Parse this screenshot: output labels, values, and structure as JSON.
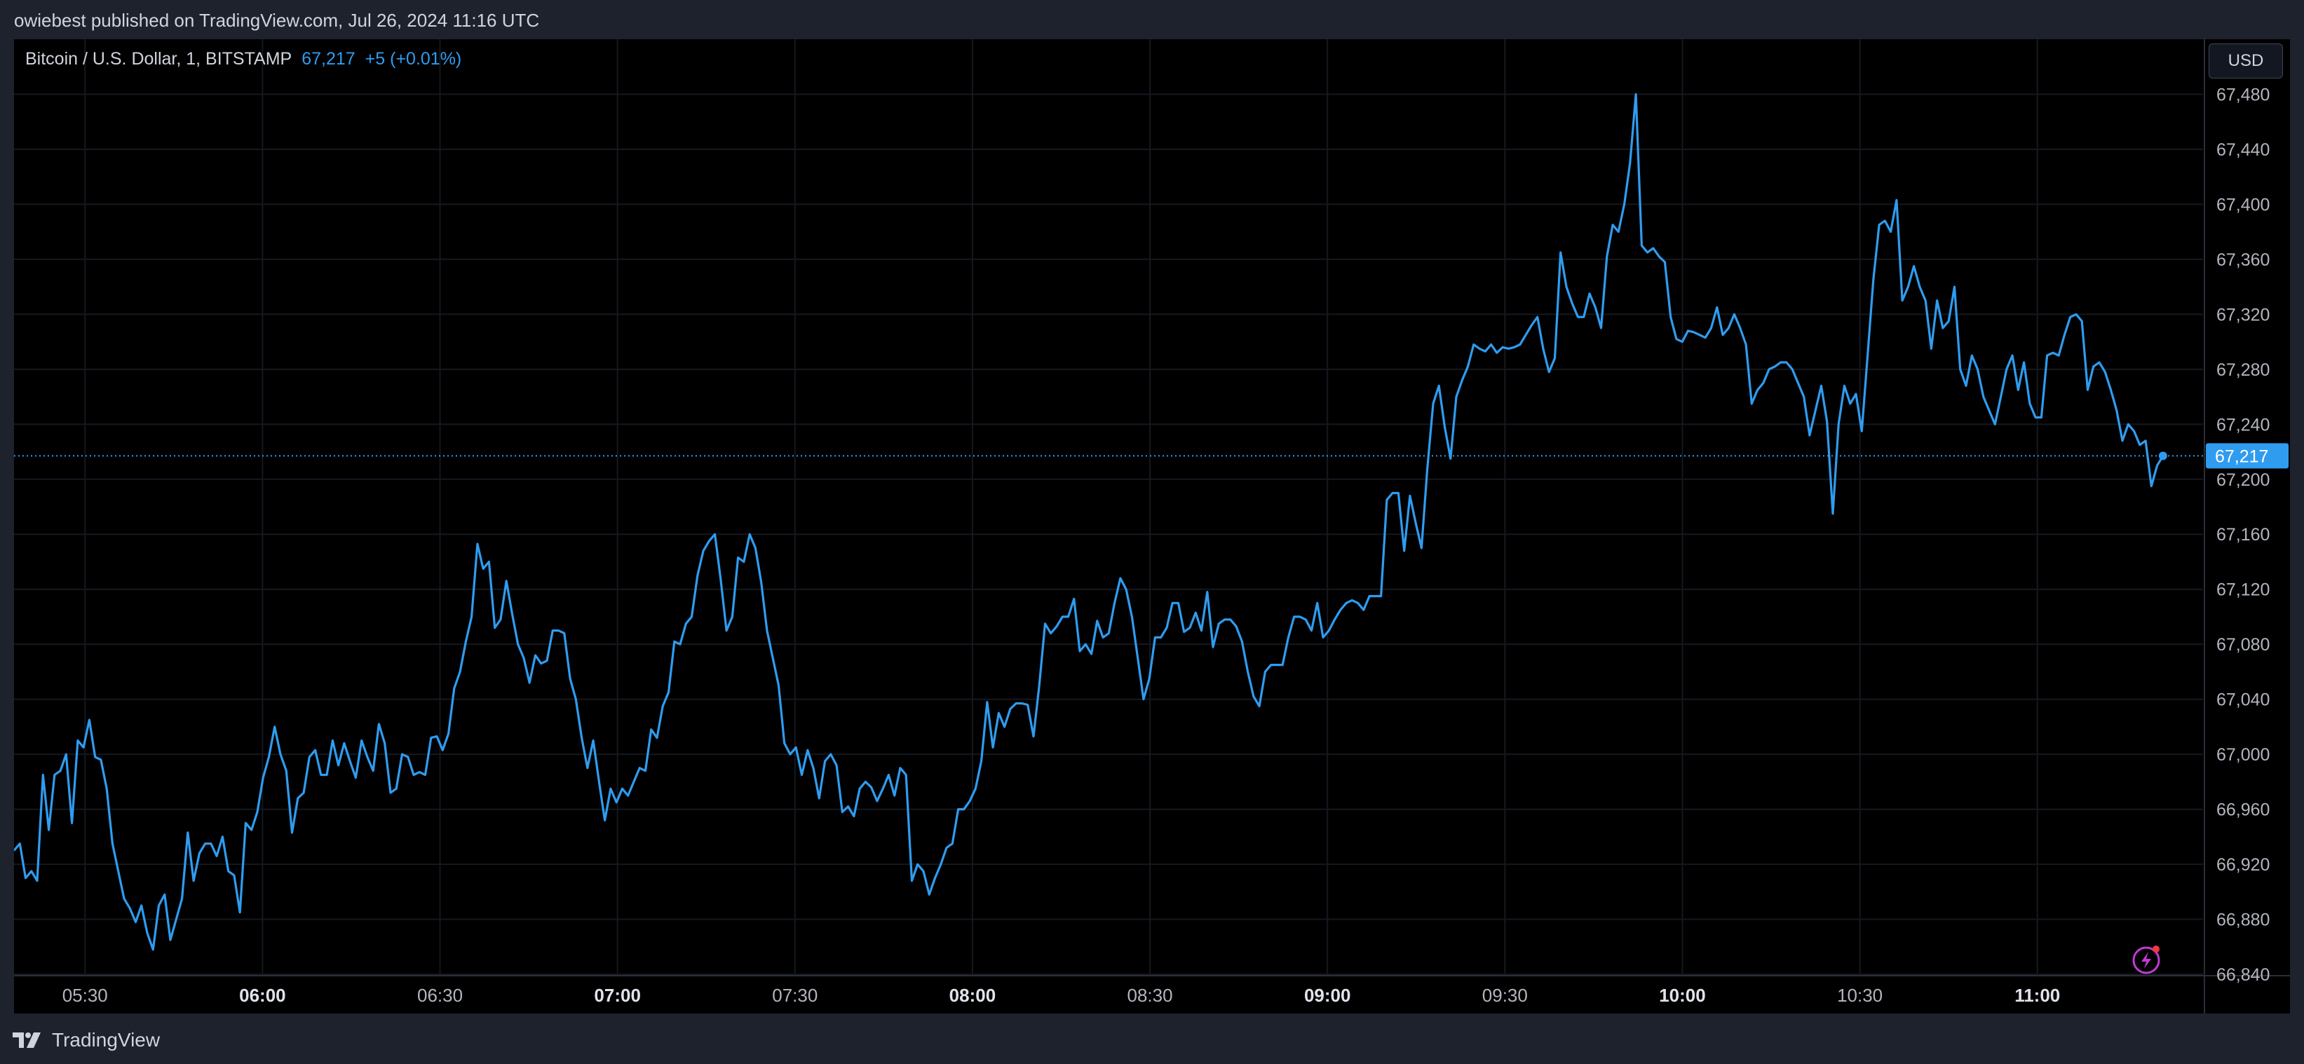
{
  "publisher_line": "owiebest published on TradingView.com, Jul 26, 2024 11:16 UTC",
  "legend": {
    "symbol": "Bitcoin / U.S. Dollar, 1, BITSTAMP",
    "price": "67,217",
    "change": "+5 (+0.01%)"
  },
  "currency": "USD",
  "footer": {
    "brand": "TradingView"
  },
  "icons": {
    "logo": "tradingview-logo-icon",
    "flash": "lightning-icon"
  },
  "colors": {
    "background": "#000000",
    "frame": "#1e222d",
    "line": "#2f9cf0",
    "price_tag": "#2f9cf0",
    "grid": "#15181f",
    "axis_text": "#b2b5be",
    "flash": "#c239d6"
  },
  "chart_data": {
    "type": "line",
    "title": "",
    "xlabel": "",
    "ylabel": "",
    "x_start": "05:19",
    "x_end": "11:16",
    "xlim_minutes": [
      318,
      688
    ],
    "ylim": [
      66840,
      67520
    ],
    "last_price": 67217,
    "last_price_label": "67,217",
    "x_ticks": [
      {
        "label": "05:30",
        "minute": 330,
        "bold": false
      },
      {
        "label": "06:00",
        "minute": 360,
        "bold": true
      },
      {
        "label": "06:30",
        "minute": 390,
        "bold": false
      },
      {
        "label": "07:00",
        "minute": 420,
        "bold": true
      },
      {
        "label": "07:30",
        "minute": 450,
        "bold": false
      },
      {
        "label": "08:00",
        "minute": 480,
        "bold": true
      },
      {
        "label": "08:30",
        "minute": 510,
        "bold": false
      },
      {
        "label": "09:00",
        "minute": 540,
        "bold": true
      },
      {
        "label": "09:30",
        "minute": 570,
        "bold": false
      },
      {
        "label": "10:00",
        "minute": 600,
        "bold": true
      },
      {
        "label": "10:30",
        "minute": 630,
        "bold": false
      },
      {
        "label": "11:00",
        "minute": 660,
        "bold": true
      }
    ],
    "y_ticks": [
      {
        "label": "66,840",
        "value": 66840
      },
      {
        "label": "66,880",
        "value": 66880
      },
      {
        "label": "66,920",
        "value": 66920
      },
      {
        "label": "66,960",
        "value": 66960
      },
      {
        "label": "67,000",
        "value": 67000
      },
      {
        "label": "67,040",
        "value": 67040
      },
      {
        "label": "67,080",
        "value": 67080
      },
      {
        "label": "67,120",
        "value": 67120
      },
      {
        "label": "67,160",
        "value": 67160
      },
      {
        "label": "67,200",
        "value": 67200
      },
      {
        "label": "67,240",
        "value": 67240
      },
      {
        "label": "67,280",
        "value": 67280
      },
      {
        "label": "67,320",
        "value": 67320
      },
      {
        "label": "67,360",
        "value": 67360
      },
      {
        "label": "67,400",
        "value": 67400
      },
      {
        "label": "67,440",
        "value": 67440
      },
      {
        "label": "67,480",
        "value": 67480
      }
    ],
    "grid": true,
    "series": [
      {
        "values": [
          66930,
          66935,
          66910,
          66915,
          66908,
          66985,
          66945,
          66985,
          66988,
          67000,
          66950,
          67010,
          67005,
          67025,
          66998,
          66996,
          66975,
          66935,
          66915,
          66895,
          66888,
          66878,
          66890,
          66870,
          66858,
          66890,
          66898,
          66865,
          66880,
          66895,
          66943,
          66908,
          66928,
          66935,
          66935,
          66926,
          66940,
          66915,
          66912,
          66885,
          66950,
          66945,
          66958,
          66983,
          66998,
          67020,
          67000,
          66988,
          66943,
          66968,
          66972,
          66998,
          67003,
          66985,
          66985,
          67010,
          66992,
          67008,
          66995,
          66983,
          67010,
          66998,
          66988,
          67022,
          67008,
          66972,
          66975,
          67000,
          66998,
          66985,
          66987,
          66985,
          67012,
          67013,
          67003,
          67015,
          67048,
          67060,
          67082,
          67100,
          67153,
          67135,
          67140,
          67092,
          67098,
          67126,
          67102,
          67080,
          67070,
          67052,
          67072,
          67066,
          67068,
          67090,
          67090,
          67088,
          67055,
          67040,
          67012,
          66990,
          67010,
          66980,
          66952,
          66975,
          66965,
          66975,
          66970,
          66980,
          66990,
          66988,
          67018,
          67012,
          67035,
          67045,
          67082,
          67080,
          67095,
          67100,
          67130,
          67148,
          67155,
          67160,
          67127,
          67090,
          67100,
          67143,
          67140,
          67160,
          67150,
          67125,
          67090,
          67070,
          67050,
          67008,
          67000,
          67005,
          66985,
          67003,
          66990,
          66968,
          66995,
          67000,
          66992,
          66958,
          66962,
          66955,
          66975,
          66980,
          66976,
          66966,
          66975,
          66985,
          66970,
          66990,
          66985,
          66908,
          66920,
          66915,
          66898,
          66910,
          66920,
          66932,
          66935,
          66960,
          66960,
          66966,
          66975,
          66995,
          67038,
          67005,
          67030,
          67020,
          67033,
          67037,
          67037,
          67036,
          67013,
          67050,
          67095,
          67088,
          67093,
          67100,
          67100,
          67113,
          67075,
          67080,
          67073,
          67097,
          67085,
          67088,
          67110,
          67128,
          67120,
          67100,
          67070,
          67040,
          67055,
          67085,
          67085,
          67092,
          67110,
          67110,
          67089,
          67092,
          67103,
          67090,
          67118,
          67078,
          67095,
          67098,
          67098,
          67093,
          67082,
          67060,
          67042,
          67035,
          67060,
          67065,
          67065,
          67065,
          67085,
          67100,
          67100,
          67098,
          67090,
          67110,
          67085,
          67090,
          67098,
          67105,
          67110,
          67112,
          67110,
          67105,
          67115,
          67115,
          67115,
          67185,
          67190,
          67190,
          67148,
          67188,
          67168,
          67150,
          67208,
          67255,
          67268,
          67238,
          67215,
          67260,
          67272,
          67282,
          67298,
          67295,
          67293,
          67298,
          67292,
          67296,
          67295,
          67296,
          67298,
          67305,
          67312,
          67318,
          67295,
          67278,
          67288,
          67365,
          67340,
          67328,
          67318,
          67318,
          67335,
          67325,
          67310,
          67362,
          67385,
          67380,
          67400,
          67430,
          67480,
          67370,
          67365,
          67368,
          67362,
          67358,
          67318,
          67302,
          67300,
          67308,
          67307,
          67305,
          67303,
          67310,
          67325,
          67305,
          67310,
          67320,
          67310,
          67298,
          67255,
          67265,
          67270,
          67280,
          67282,
          67285,
          67285,
          67280,
          67270,
          67260,
          67232,
          67250,
          67268,
          67242,
          67175,
          67240,
          67268,
          67255,
          67262,
          67235,
          67290,
          67345,
          67385,
          67388,
          67380,
          67403,
          67330,
          67340,
          67355,
          67340,
          67330,
          67295,
          67330,
          67310,
          67315,
          67340,
          67280,
          67268,
          67290,
          67280,
          67260,
          67250,
          67240,
          67260,
          67280,
          67290,
          67265,
          67285,
          67255,
          67245,
          67245,
          67290,
          67292,
          67290,
          67305,
          67318,
          67320,
          67315,
          67265,
          67282,
          67285,
          67278,
          67265,
          67250,
          67228,
          67240,
          67235,
          67225,
          67228,
          67195,
          67210,
          67217
        ]
      }
    ]
  }
}
